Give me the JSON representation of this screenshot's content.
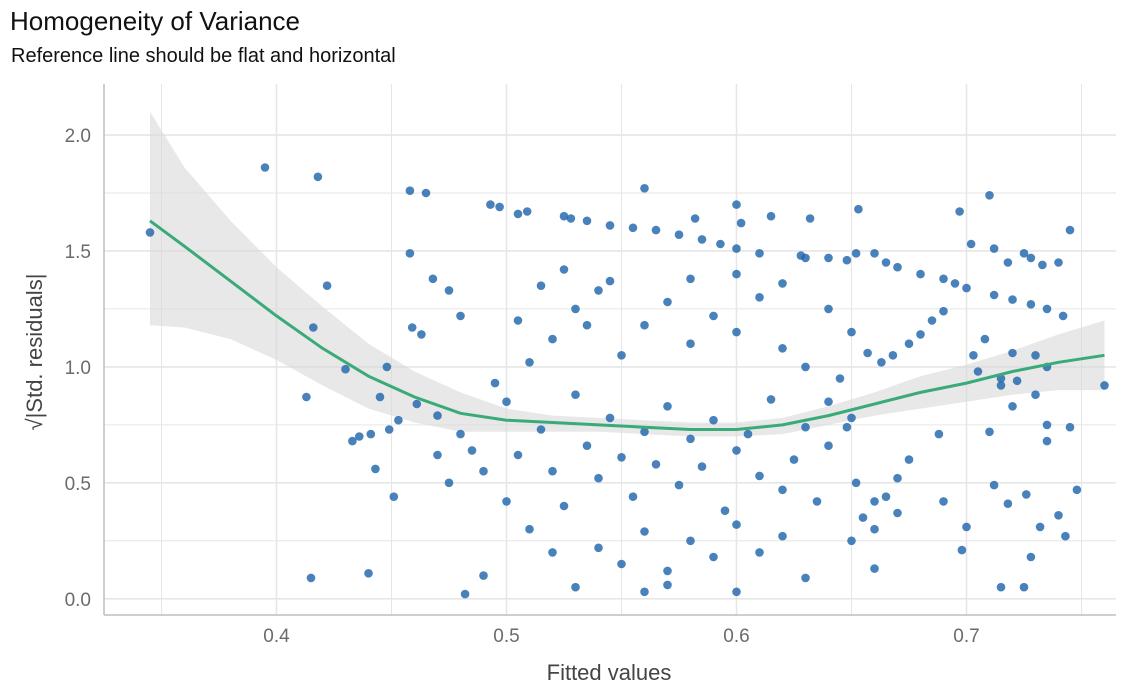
{
  "chart_data": {
    "type": "scatter",
    "title": "Homogeneity of Variance",
    "subtitle": "Reference line should be flat and horizontal",
    "xlabel": "Fitted values",
    "ylabel": "|Std. residuals|",
    "ylabel_prefix": "√",
    "xlim": [
      0.325,
      0.765
    ],
    "ylim": [
      -0.07,
      2.22
    ],
    "x_ticks": [
      "0.4",
      "0.5",
      "0.6",
      "0.7"
    ],
    "y_ticks": [
      "0.0",
      "0.5",
      "1.0",
      "1.5",
      "2.0"
    ],
    "grid": true,
    "legend": "none",
    "colors": {
      "points": "#2166ac",
      "smooth": "#3aaa78",
      "ribbon": "#d9d9d9",
      "grid": "#e6e6e6",
      "axis": "#bdbdbd"
    },
    "series": [
      {
        "values_note": "",
        "points": [
          [
            0.345,
            1.58
          ],
          [
            0.395,
            1.86
          ],
          [
            0.418,
            1.82
          ],
          [
            0.422,
            1.35
          ],
          [
            0.416,
            1.17
          ],
          [
            0.413,
            0.87
          ],
          [
            0.415,
            0.09
          ],
          [
            0.44,
            0.11
          ],
          [
            0.43,
            0.99
          ],
          [
            0.433,
            0.68
          ],
          [
            0.436,
            0.7
          ],
          [
            0.441,
            0.71
          ],
          [
            0.445,
            0.87
          ],
          [
            0.448,
            1.0
          ],
          [
            0.449,
            0.73
          ],
          [
            0.451,
            0.44
          ],
          [
            0.443,
            0.56
          ],
          [
            0.453,
            0.77
          ],
          [
            0.458,
            1.76
          ],
          [
            0.465,
            1.75
          ],
          [
            0.458,
            1.49
          ],
          [
            0.459,
            1.17
          ],
          [
            0.463,
            1.14
          ],
          [
            0.468,
            1.38
          ],
          [
            0.461,
            0.84
          ],
          [
            0.47,
            0.79
          ],
          [
            0.475,
            1.33
          ],
          [
            0.48,
            1.22
          ],
          [
            0.482,
            0.02
          ],
          [
            0.49,
            0.1
          ],
          [
            0.493,
            1.7
          ],
          [
            0.497,
            1.69
          ],
          [
            0.509,
            1.67
          ],
          [
            0.505,
            1.66
          ],
          [
            0.525,
            1.65
          ],
          [
            0.528,
            1.64
          ],
          [
            0.535,
            1.63
          ],
          [
            0.545,
            1.61
          ],
          [
            0.555,
            1.6
          ],
          [
            0.565,
            1.59
          ],
          [
            0.575,
            1.57
          ],
          [
            0.585,
            1.55
          ],
          [
            0.593,
            1.53
          ],
          [
            0.6,
            1.51
          ],
          [
            0.56,
            1.77
          ],
          [
            0.582,
            1.64
          ],
          [
            0.6,
            1.7
          ],
          [
            0.602,
            1.62
          ],
          [
            0.615,
            1.65
          ],
          [
            0.632,
            1.64
          ],
          [
            0.653,
            1.68
          ],
          [
            0.61,
            1.49
          ],
          [
            0.628,
            1.48
          ],
          [
            0.63,
            1.47
          ],
          [
            0.64,
            1.47
          ],
          [
            0.648,
            1.46
          ],
          [
            0.66,
            1.49
          ],
          [
            0.652,
            1.49
          ],
          [
            0.665,
            1.45
          ],
          [
            0.67,
            1.43
          ],
          [
            0.68,
            1.4
          ],
          [
            0.69,
            1.38
          ],
          [
            0.695,
            1.36
          ],
          [
            0.7,
            1.34
          ],
          [
            0.712,
            1.31
          ],
          [
            0.72,
            1.29
          ],
          [
            0.728,
            1.27
          ],
          [
            0.735,
            1.25
          ],
          [
            0.742,
            1.22
          ],
          [
            0.745,
            1.59
          ],
          [
            0.71,
            1.74
          ],
          [
            0.697,
            1.67
          ],
          [
            0.702,
            1.53
          ],
          [
            0.712,
            1.51
          ],
          [
            0.718,
            1.45
          ],
          [
            0.728,
            1.47
          ],
          [
            0.733,
            1.44
          ],
          [
            0.74,
            1.45
          ],
          [
            0.725,
            1.49
          ],
          [
            0.76,
            0.92
          ],
          [
            0.748,
            0.47
          ],
          [
            0.745,
            0.74
          ],
          [
            0.735,
            0.68
          ],
          [
            0.74,
            0.36
          ],
          [
            0.743,
            0.27
          ],
          [
            0.728,
            0.18
          ],
          [
            0.732,
            0.31
          ],
          [
            0.725,
            0.05
          ],
          [
            0.715,
            0.05
          ],
          [
            0.712,
            0.49
          ],
          [
            0.718,
            0.41
          ],
          [
            0.726,
            0.45
          ],
          [
            0.72,
            0.83
          ],
          [
            0.73,
            0.88
          ],
          [
            0.722,
            0.94
          ],
          [
            0.715,
            0.95
          ],
          [
            0.735,
            0.75
          ],
          [
            0.71,
            0.72
          ],
          [
            0.705,
            0.98
          ],
          [
            0.698,
            0.21
          ],
          [
            0.7,
            0.31
          ],
          [
            0.69,
            0.42
          ],
          [
            0.688,
            0.71
          ],
          [
            0.675,
            0.6
          ],
          [
            0.67,
            0.52
          ],
          [
            0.665,
            0.44
          ],
          [
            0.66,
            0.42
          ],
          [
            0.655,
            0.35
          ],
          [
            0.66,
            0.13
          ],
          [
            0.652,
            0.5
          ],
          [
            0.648,
            0.74
          ],
          [
            0.645,
            0.95
          ],
          [
            0.65,
            0.78
          ],
          [
            0.657,
            1.06
          ],
          [
            0.663,
            1.02
          ],
          [
            0.668,
            1.05
          ],
          [
            0.675,
            1.1
          ],
          [
            0.68,
            1.14
          ],
          [
            0.685,
            1.2
          ],
          [
            0.69,
            1.24
          ],
          [
            0.703,
            1.05
          ],
          [
            0.708,
            1.12
          ],
          [
            0.715,
            0.92
          ],
          [
            0.73,
            1.05
          ],
          [
            0.735,
            1.0
          ],
          [
            0.72,
            1.06
          ],
          [
            0.5,
            0.85
          ],
          [
            0.505,
            0.62
          ],
          [
            0.515,
            0.73
          ],
          [
            0.52,
            0.55
          ],
          [
            0.525,
            0.4
          ],
          [
            0.53,
            0.88
          ],
          [
            0.535,
            0.66
          ],
          [
            0.54,
            0.52
          ],
          [
            0.545,
            0.78
          ],
          [
            0.55,
            0.61
          ],
          [
            0.555,
            0.44
          ],
          [
            0.56,
            0.72
          ],
          [
            0.565,
            0.58
          ],
          [
            0.57,
            0.83
          ],
          [
            0.575,
            0.49
          ],
          [
            0.58,
            0.69
          ],
          [
            0.585,
            0.57
          ],
          [
            0.59,
            0.77
          ],
          [
            0.595,
            0.38
          ],
          [
            0.6,
            0.64
          ],
          [
            0.605,
            0.71
          ],
          [
            0.61,
            0.53
          ],
          [
            0.615,
            0.86
          ],
          [
            0.62,
            0.47
          ],
          [
            0.625,
            0.6
          ],
          [
            0.63,
            0.74
          ],
          [
            0.635,
            0.42
          ],
          [
            0.64,
            0.66
          ],
          [
            0.51,
            1.02
          ],
          [
            0.52,
            1.12
          ],
          [
            0.53,
            1.25
          ],
          [
            0.54,
            1.33
          ],
          [
            0.55,
            1.05
          ],
          [
            0.56,
            1.18
          ],
          [
            0.57,
            1.28
          ],
          [
            0.58,
            1.1
          ],
          [
            0.59,
            1.22
          ],
          [
            0.6,
            1.15
          ],
          [
            0.61,
            1.3
          ],
          [
            0.62,
            1.08
          ],
          [
            0.63,
            1.0
          ],
          [
            0.54,
            0.22
          ],
          [
            0.55,
            0.15
          ],
          [
            0.56,
            0.29
          ],
          [
            0.57,
            0.12
          ],
          [
            0.58,
            0.25
          ],
          [
            0.59,
            0.18
          ],
          [
            0.6,
            0.32
          ],
          [
            0.61,
            0.2
          ],
          [
            0.62,
            0.27
          ],
          [
            0.52,
            0.2
          ],
          [
            0.51,
            0.3
          ],
          [
            0.5,
            0.42
          ],
          [
            0.49,
            0.55
          ],
          [
            0.485,
            0.64
          ],
          [
            0.48,
            0.71
          ],
          [
            0.475,
            0.5
          ],
          [
            0.47,
            0.62
          ],
          [
            0.495,
            0.93
          ],
          [
            0.505,
            1.2
          ],
          [
            0.515,
            1.35
          ],
          [
            0.525,
            1.42
          ],
          [
            0.535,
            1.18
          ],
          [
            0.545,
            1.37
          ],
          [
            0.58,
            1.38
          ],
          [
            0.6,
            1.4
          ],
          [
            0.62,
            1.36
          ],
          [
            0.64,
            1.25
          ],
          [
            0.65,
            1.15
          ],
          [
            0.53,
            0.05
          ],
          [
            0.56,
            0.03
          ],
          [
            0.57,
            0.06
          ],
          [
            0.6,
            0.03
          ],
          [
            0.63,
            0.09
          ],
          [
            0.65,
            0.25
          ],
          [
            0.66,
            0.3
          ],
          [
            0.67,
            0.37
          ],
          [
            0.64,
            0.85
          ]
        ]
      }
    ],
    "smooth": {
      "x": [
        0.345,
        0.36,
        0.38,
        0.4,
        0.42,
        0.44,
        0.46,
        0.48,
        0.5,
        0.52,
        0.54,
        0.56,
        0.58,
        0.6,
        0.62,
        0.64,
        0.66,
        0.68,
        0.7,
        0.72,
        0.74,
        0.76
      ],
      "y": [
        1.63,
        1.52,
        1.37,
        1.22,
        1.08,
        0.96,
        0.87,
        0.8,
        0.77,
        0.76,
        0.75,
        0.74,
        0.73,
        0.73,
        0.75,
        0.79,
        0.84,
        0.89,
        0.93,
        0.98,
        1.02,
        1.05
      ],
      "upper": [
        2.1,
        1.86,
        1.63,
        1.43,
        1.26,
        1.1,
        0.98,
        0.89,
        0.82,
        0.79,
        0.78,
        0.77,
        0.76,
        0.76,
        0.78,
        0.83,
        0.89,
        0.96,
        1.01,
        1.07,
        1.14,
        1.2
      ],
      "lower": [
        1.18,
        1.17,
        1.12,
        1.03,
        0.92,
        0.82,
        0.76,
        0.72,
        0.72,
        0.72,
        0.72,
        0.71,
        0.7,
        0.7,
        0.71,
        0.75,
        0.79,
        0.82,
        0.85,
        0.88,
        0.9,
        0.9
      ]
    }
  }
}
